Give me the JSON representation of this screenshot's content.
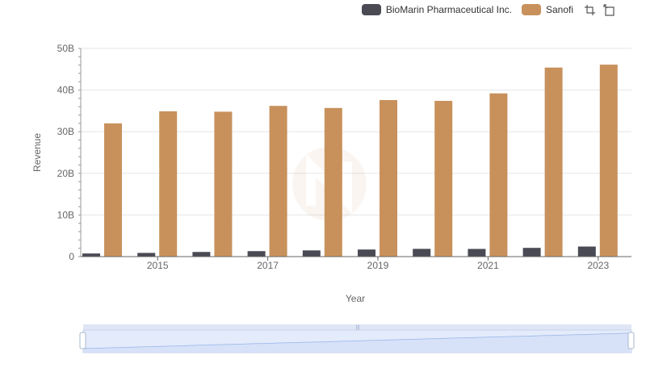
{
  "legend": {
    "items": [
      {
        "label": "BioMarin Pharmaceutical Inc.",
        "color": "#4a4a55"
      },
      {
        "label": "Sanofi",
        "color": "#c8915c"
      }
    ]
  },
  "toolbox": {
    "icons": [
      "zoom-icon",
      "restore-icon"
    ]
  },
  "chart_data": {
    "type": "bar",
    "title": "",
    "xlabel": "Year",
    "ylabel": "Revenue",
    "categories": [
      "2014",
      "2015",
      "2016",
      "2017",
      "2018",
      "2019",
      "2020",
      "2021",
      "2022",
      "2023"
    ],
    "x_tick_labels": [
      "2015",
      "2017",
      "2019",
      "2021",
      "2023"
    ],
    "y_tick_labels": [
      "0",
      "10B",
      "20B",
      "30B",
      "40B",
      "50B"
    ],
    "ylim": [
      0,
      50000000000
    ],
    "grid": true,
    "legend_position": "top-right",
    "series": [
      {
        "name": "BioMarin Pharmaceutical Inc.",
        "color": "#4a4a55",
        "values": [
          751000000,
          890000000,
          1117000000,
          1314000000,
          1491000000,
          1704000000,
          1860000000,
          1846000000,
          2096000000,
          2419000000
        ]
      },
      {
        "name": "Sanofi",
        "color": "#c8915c",
        "values": [
          32000000000,
          34900000000,
          34800000000,
          36200000000,
          35700000000,
          37600000000,
          37400000000,
          39200000000,
          45400000000,
          46100000000
        ]
      }
    ]
  }
}
